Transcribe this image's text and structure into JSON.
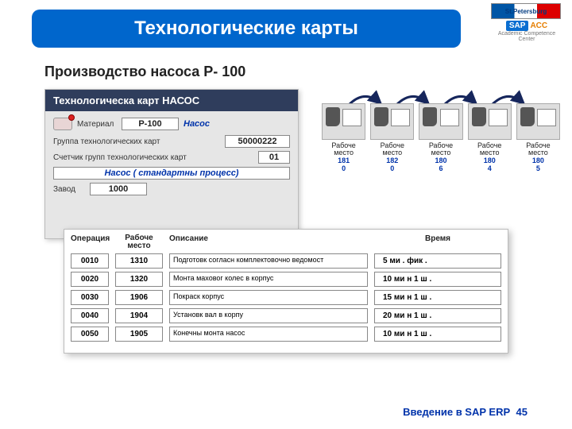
{
  "header": {
    "title": "Технологические карты"
  },
  "logo": {
    "city": "St.Petersburg",
    "sap": "SAP",
    "acc": "ACC",
    "sub": "Academic Competence Center"
  },
  "subtitle": "Производство насоса P- 100",
  "panel": {
    "title": "Технологическа   карт  НАСОС",
    "material_label": "Материал",
    "material_value": "P-100",
    "material_desc": "Насос",
    "group_label": "Группа технологических карт",
    "group_value": "50000222",
    "counter_label": "Счетчик групп технологических карт",
    "counter_value": "01",
    "process_text": "Насос ( стандартны  процесс)",
    "plant_label": "Завод",
    "plant_value": "1000"
  },
  "workplaces": {
    "label": "Рабоче место",
    "items": [
      {
        "line1": "181",
        "line2": "0"
      },
      {
        "line1": "182",
        "line2": "0"
      },
      {
        "line1": "180",
        "line2": "6"
      },
      {
        "line1": "180",
        "line2": "4"
      },
      {
        "line1": "180",
        "line2": "5"
      }
    ]
  },
  "ops": {
    "h_op": "Операция",
    "h_wp": "Рабоче место",
    "h_desc": "Описание",
    "h_time": "Время",
    "rows": [
      {
        "op": "0010",
        "wp": "1310",
        "desc": "Подготовк  согласн комплектовочно    ведомост",
        "time": "5  ми  .   фик ."
      },
      {
        "op": "0020",
        "wp": "1320",
        "desc": "Монта   маховог   колес   в   корпус",
        "time": "10  ми    н   1  ш ."
      },
      {
        "op": "0030",
        "wp": "1906",
        "desc": "Покраск   корпус",
        "time": "15  ми    н   1  ш ."
      },
      {
        "op": "0040",
        "wp": "1904",
        "desc": "Установк   вал   в  корпу",
        "time": "20  ми    н   1  ш ."
      },
      {
        "op": "0050",
        "wp": "1905",
        "desc": "Конечны   монта   насос",
        "time": "10  ми    н   1  ш ."
      }
    ]
  },
  "footer": {
    "text": "Введение в SAP ERP",
    "page": "45"
  },
  "colors": {
    "header_bg": "#0066cc",
    "panel_title_bg": "#2f3d5c",
    "accent_blue": "#0033aa",
    "arrow": "#16265c"
  }
}
